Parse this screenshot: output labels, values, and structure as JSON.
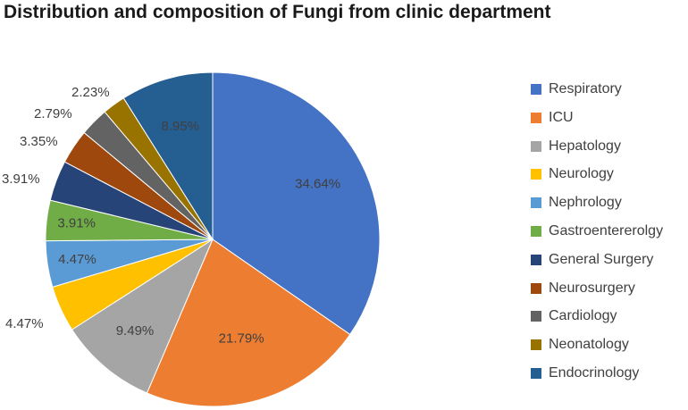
{
  "chart_data": {
    "type": "pie",
    "title": "Distribution and composition of Fungi from clinic department",
    "categories": [
      "Respiratory",
      "ICU",
      "Hepatology",
      "Neurology",
      "Nephrology",
      "Gastroentererolgy",
      "General Surgery",
      "Neurosurgery",
      "Cardiology",
      "Neonatology",
      "Endocrinology"
    ],
    "values": [
      34.64,
      21.79,
      9.49,
      4.47,
      4.47,
      3.91,
      3.91,
      3.35,
      2.79,
      2.23,
      8.95
    ],
    "data_labels": [
      "34.64%",
      "21.79%",
      "9.49%",
      "4.47%",
      "4.47%",
      "3.91%",
      "3.91%",
      "3.35%",
      "2.79%",
      "2.23%",
      "8.95%"
    ],
    "colors": [
      "#4472C4",
      "#ED7D31",
      "#A5A5A5",
      "#FFC000",
      "#5B9BD5",
      "#70AD47",
      "#264478",
      "#9E480E",
      "#636363",
      "#997300",
      "#255E91"
    ],
    "legend_position": "right",
    "start_angle": "12 o'clock",
    "direction": "clockwise"
  }
}
